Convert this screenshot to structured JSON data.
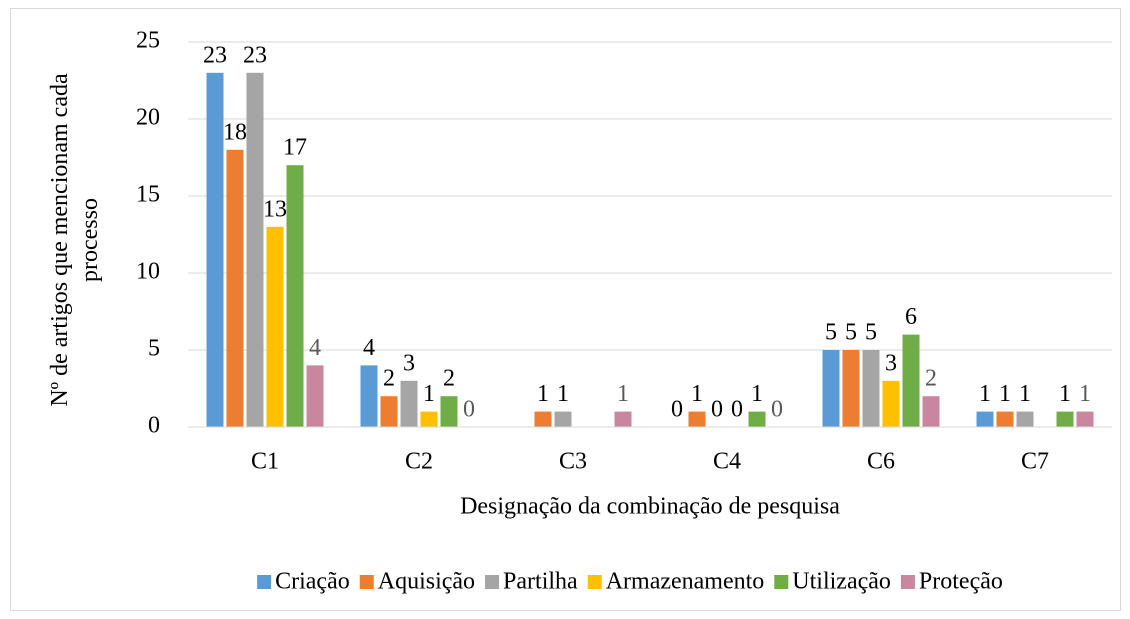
{
  "chart_data": {
    "type": "bar",
    "x_label": "Designação da combinação de pesquisa",
    "y_label": "Nº de artigos que mencionam cada processo",
    "categories": [
      "C1",
      "C2",
      "C3",
      "C4",
      "C6",
      "C7"
    ],
    "series": [
      {
        "name": "Criação",
        "color": "#5b9bd5",
        "label_color": "#000000",
        "values": [
          23,
          4,
          null,
          0,
          5,
          1
        ]
      },
      {
        "name": "Aquisição",
        "color": "#ed7d31",
        "label_color": "#000000",
        "values": [
          18,
          2,
          1,
          1,
          5,
          1
        ]
      },
      {
        "name": "Partilha",
        "color": "#a5a5a5",
        "label_color": "#000000",
        "values": [
          23,
          3,
          1,
          0,
          5,
          1
        ]
      },
      {
        "name": "Armazenamento",
        "color": "#ffc000",
        "label_color": "#000000",
        "values": [
          13,
          1,
          null,
          0,
          3,
          null
        ]
      },
      {
        "name": "Utilização",
        "color": "#70ad47",
        "label_color": "#000000",
        "values": [
          17,
          2,
          null,
          1,
          6,
          1
        ]
      },
      {
        "name": "Proteção",
        "color": "#c9879f",
        "label_color": "#595959",
        "values": [
          4,
          0,
          1,
          0,
          2,
          1
        ]
      }
    ],
    "ylim": [
      0,
      25
    ],
    "yticks": [
      0,
      5,
      10,
      15,
      20,
      25
    ],
    "grid": true,
    "legend": "bottom"
  }
}
